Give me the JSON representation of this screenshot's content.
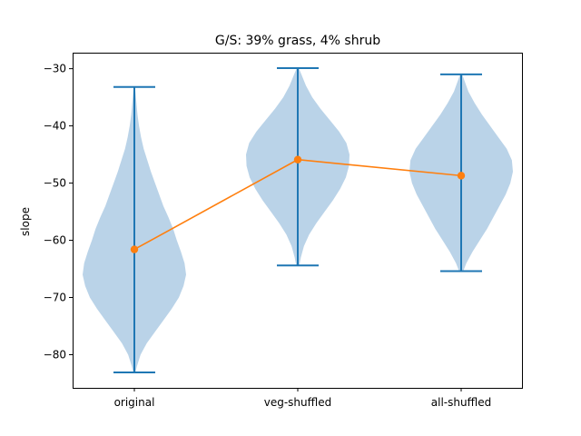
{
  "chart_data": {
    "type": "violin",
    "title": "G/S: 39% grass, 4% shrub",
    "xlabel": "",
    "ylabel": "slope",
    "categories": [
      "original",
      "veg-shuffled",
      "all-shuffled"
    ],
    "ylim": [
      -85.8,
      -27.2
    ],
    "yticks": [
      -30,
      -40,
      -50,
      -60,
      -70,
      -80
    ],
    "yticks_labels": [
      "−30",
      "−40",
      "−50",
      "−60",
      "−70",
      "−80"
    ],
    "violins": [
      {
        "category": "original",
        "min": -83.1,
        "max": -33.2,
        "profile": [
          [
            -83.1,
            0.02
          ],
          [
            -82.0,
            0.05
          ],
          [
            -80.0,
            0.12
          ],
          [
            -78.0,
            0.24
          ],
          [
            -76.0,
            0.4
          ],
          [
            -74.0,
            0.56
          ],
          [
            -72.0,
            0.72
          ],
          [
            -70.0,
            0.86
          ],
          [
            -68.0,
            0.95
          ],
          [
            -66.0,
            1.0
          ],
          [
            -64.0,
            0.97
          ],
          [
            -62.0,
            0.9
          ],
          [
            -60.0,
            0.82
          ],
          [
            -58.0,
            0.75
          ],
          [
            -56.0,
            0.66
          ],
          [
            -54.0,
            0.56
          ],
          [
            -52.0,
            0.48
          ],
          [
            -50.0,
            0.4
          ],
          [
            -48.0,
            0.32
          ],
          [
            -46.0,
            0.25
          ],
          [
            -44.0,
            0.18
          ],
          [
            -42.0,
            0.13
          ],
          [
            -40.0,
            0.09
          ],
          [
            -38.0,
            0.06
          ],
          [
            -36.0,
            0.04
          ],
          [
            -34.0,
            0.02
          ],
          [
            -33.2,
            0.01
          ]
        ]
      },
      {
        "category": "veg-shuffled",
        "min": -64.4,
        "max": -29.9,
        "profile": [
          [
            -64.4,
            0.03
          ],
          [
            -63.0,
            0.06
          ],
          [
            -61.0,
            0.12
          ],
          [
            -59.0,
            0.22
          ],
          [
            -57.0,
            0.36
          ],
          [
            -55.0,
            0.52
          ],
          [
            -53.0,
            0.68
          ],
          [
            -51.0,
            0.82
          ],
          [
            -49.0,
            0.93
          ],
          [
            -47.0,
            0.99
          ],
          [
            -45.0,
            1.0
          ],
          [
            -43.0,
            0.94
          ],
          [
            -41.0,
            0.8
          ],
          [
            -39.0,
            0.62
          ],
          [
            -37.0,
            0.44
          ],
          [
            -35.0,
            0.28
          ],
          [
            -33.0,
            0.16
          ],
          [
            -31.0,
            0.07
          ],
          [
            -29.9,
            0.02
          ]
        ]
      },
      {
        "category": "all-shuffled",
        "min": -65.4,
        "max": -31.0,
        "profile": [
          [
            -65.4,
            0.04
          ],
          [
            -64.0,
            0.1
          ],
          [
            -62.0,
            0.22
          ],
          [
            -60.0,
            0.36
          ],
          [
            -58.0,
            0.5
          ],
          [
            -56.0,
            0.62
          ],
          [
            -54.0,
            0.74
          ],
          [
            -52.0,
            0.86
          ],
          [
            -50.0,
            0.95
          ],
          [
            -48.0,
            1.0
          ],
          [
            -46.0,
            0.98
          ],
          [
            -44.0,
            0.88
          ],
          [
            -42.0,
            0.72
          ],
          [
            -40.0,
            0.56
          ],
          [
            -38.0,
            0.4
          ],
          [
            -36.0,
            0.26
          ],
          [
            -34.0,
            0.14
          ],
          [
            -32.0,
            0.06
          ],
          [
            -31.0,
            0.02
          ]
        ]
      }
    ],
    "means": {
      "values": [
        -61.6,
        -45.9,
        -48.7
      ]
    },
    "colors": {
      "violin_fill": "#a9c8e2",
      "violin_line": "#1f77b4",
      "mean_line": "#ff7f0e"
    }
  }
}
